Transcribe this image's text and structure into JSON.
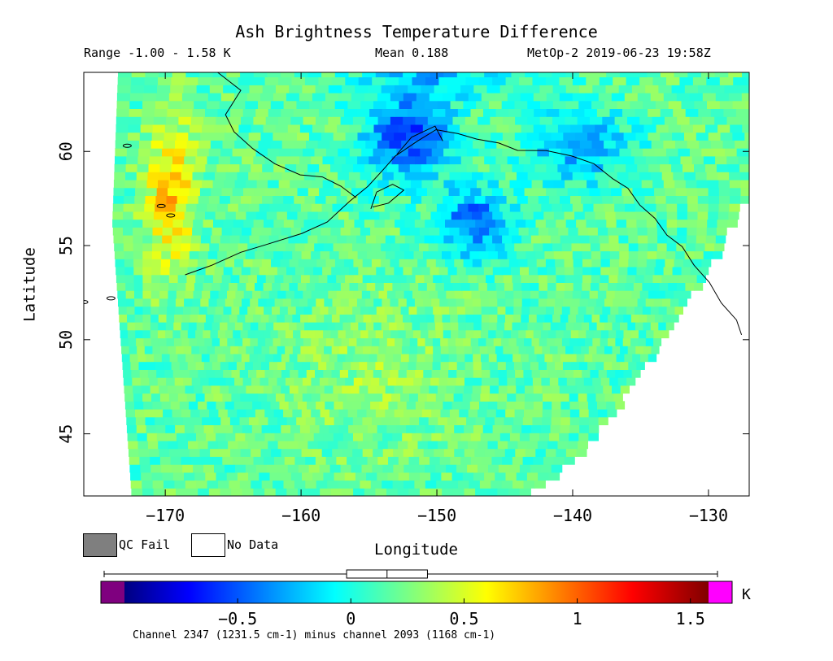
{
  "header": {
    "title": "Ash Brightness Temperature Difference",
    "range_text": "Range -1.00 - 1.58 K",
    "mean_text": "Mean 0.188",
    "satellite_text": "MetOp-2 2019-06-23 19:58Z"
  },
  "map": {
    "xlabel": "Longitude",
    "ylabel": "Latitude",
    "lon_range": [
      -176,
      -127
    ],
    "lat_range": [
      41.7,
      64.2
    ],
    "lon_ticks": [
      -170,
      -160,
      -150,
      -140,
      -130
    ],
    "lon_tick_labels": [
      "−170",
      "−160",
      "−150",
      "−140",
      "−130"
    ],
    "lat_ticks": [
      45,
      50,
      55,
      60
    ],
    "lat_tick_labels": [
      "45",
      "50",
      "55",
      "60"
    ],
    "coastline_color": "#000000"
  },
  "legend": {
    "qc_fail_label": "QC Fail",
    "no_data_label": "No Data",
    "qc_fail_color": "#7f7f7f",
    "no_data_color": "#ffffff"
  },
  "colorbar": {
    "range": [
      -1.0,
      1.58
    ],
    "ticks": [
      -0.5,
      0,
      0.5,
      1,
      1.5
    ],
    "tick_labels": [
      "−0.5",
      "0",
      "0.5",
      "1",
      "1.5"
    ],
    "unit": "K",
    "underflow_color": "#7f007f",
    "overflow_color": "#ff00ff",
    "boxplot": {
      "min": -1.0,
      "q1": 0.02,
      "median": 0.19,
      "q3": 0.36,
      "max": 1.58
    },
    "footnote": "Channel 2347 (1231.5 cm-1) minus channel 2093 (1168 cm-1)"
  },
  "chart_data": {
    "type": "heatmap",
    "title": "Ash Brightness Temperature Difference",
    "xlabel": "Longitude",
    "ylabel": "Latitude",
    "xlim": [
      -176,
      -127
    ],
    "ylim": [
      41.7,
      64.2
    ],
    "value_range": [
      -1.0,
      1.58
    ],
    "mean": 0.188,
    "units": "K",
    "colormap": "jet",
    "swath_coverage": "data swath between western edge near -170 and a curved eastern edge running from about -143 at 41.7N to about -127 at 59N",
    "features": [
      {
        "region": "Gulf of Alaska, around -155 to -145 at 56-62N",
        "value_approx": -0.5
      },
      {
        "region": "western swath edge near -170, 55-60N",
        "value_approx": 0.9
      },
      {
        "region": "central Pacific, around -160 to -148 at 43-52N",
        "value_approx": 0.3
      }
    ]
  }
}
